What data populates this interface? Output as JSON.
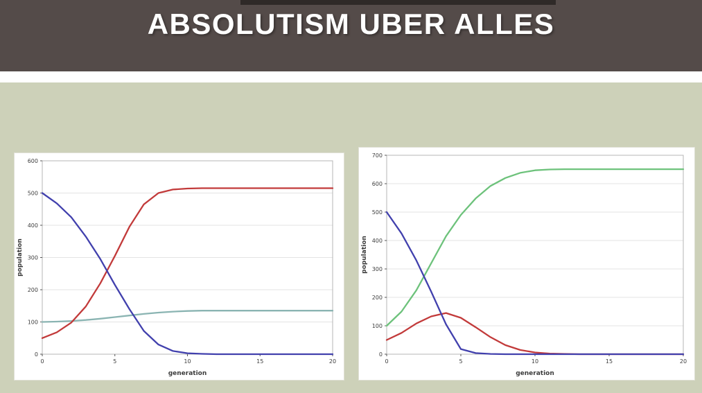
{
  "header": {
    "title": "ABSOLUTISM UBER ALLES",
    "bg_color": "#544b49",
    "top_strip_color": "#2f2a28",
    "text_color": "#ffffff"
  },
  "page": {
    "bg_color": "#cdd1b9",
    "divider_color": "#ffffff",
    "panel_bg": "#ffffff",
    "panel_border": "#e0e0d6",
    "grid_color": "#e3e3e3",
    "box_color": "#b5b5b5",
    "tick_text_color": "#3c3c3c"
  },
  "chart_data": [
    {
      "type": "line",
      "title": "",
      "xlabel": "generation",
      "ylabel": "population",
      "xlim": [
        0,
        20
      ],
      "ylim": [
        0,
        600
      ],
      "xticks": [
        0,
        5,
        10,
        15,
        20
      ],
      "yticks": [
        0,
        100,
        200,
        300,
        400,
        500,
        600
      ],
      "grid": true,
      "legend": "none",
      "x": [
        0,
        1,
        2,
        3,
        4,
        5,
        6,
        7,
        8,
        9,
        10,
        11,
        12,
        13,
        14,
        15,
        16,
        17,
        18,
        19,
        20
      ],
      "series": [
        {
          "name": "teal-stable",
          "color": "#8ab4b2",
          "values": [
            100,
            101,
            103,
            106,
            110,
            115,
            120,
            125,
            129,
            132,
            134,
            135,
            135,
            135,
            135,
            135,
            135,
            135,
            135,
            135,
            135
          ]
        },
        {
          "name": "red-rising",
          "color": "#c23a3a",
          "values": [
            50,
            68,
            98,
            148,
            220,
            305,
            395,
            465,
            500,
            511,
            514,
            515,
            515,
            515,
            515,
            515,
            515,
            515,
            515,
            515,
            515
          ]
        },
        {
          "name": "blue-declining",
          "color": "#4140ad",
          "values": [
            500,
            468,
            425,
            365,
            295,
            215,
            140,
            72,
            30,
            10,
            3,
            1,
            0,
            0,
            0,
            0,
            0,
            0,
            0,
            0,
            0
          ]
        }
      ]
    },
    {
      "type": "line",
      "title": "",
      "xlabel": "generation",
      "ylabel": "population",
      "xlim": [
        0,
        20
      ],
      "ylim": [
        0,
        700
      ],
      "xticks": [
        0,
        5,
        10,
        15,
        20
      ],
      "yticks": [
        0,
        100,
        200,
        300,
        400,
        500,
        600,
        700
      ],
      "grid": true,
      "legend": "none",
      "x": [
        0,
        1,
        2,
        3,
        4,
        5,
        6,
        7,
        8,
        9,
        10,
        11,
        12,
        13,
        14,
        15,
        16,
        17,
        18,
        19,
        20
      ],
      "series": [
        {
          "name": "green-rising",
          "color": "#6dc27b",
          "values": [
            100,
            150,
            225,
            320,
            415,
            490,
            548,
            592,
            620,
            638,
            647,
            650,
            651,
            651,
            651,
            651,
            651,
            651,
            651,
            651,
            651
          ]
        },
        {
          "name": "red-transient",
          "color": "#c23a3a",
          "values": [
            50,
            75,
            108,
            133,
            145,
            128,
            95,
            60,
            32,
            15,
            6,
            2,
            1,
            0,
            0,
            0,
            0,
            0,
            0,
            0,
            0
          ]
        },
        {
          "name": "blue-declining",
          "color": "#4140ad",
          "values": [
            500,
            425,
            330,
            220,
            105,
            18,
            4,
            1,
            0,
            0,
            0,
            0,
            0,
            0,
            0,
            0,
            0,
            0,
            0,
            0,
            0
          ]
        }
      ]
    }
  ]
}
